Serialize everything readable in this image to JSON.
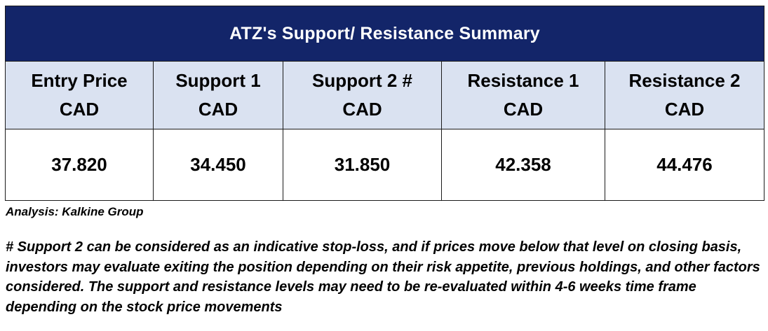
{
  "table": {
    "title": "ATZ's Support/  Resistance Summary",
    "headers": [
      {
        "line1": "Entry Price",
        "line2": "CAD"
      },
      {
        "line1": "Support 1",
        "line2": "CAD"
      },
      {
        "line1": "Support 2 #",
        "line2": "CAD"
      },
      {
        "line1": "Resistance 1",
        "line2": "CAD"
      },
      {
        "line1": "Resistance 2",
        "line2": "CAD"
      }
    ],
    "values": [
      "37.820",
      "34.450",
      "31.850",
      "42.358",
      "44.476"
    ]
  },
  "analysis_credit": "Analysis: Kalkine Group",
  "footnote": "# Support 2 can be considered as an indicative stop-loss, and if prices move below that level on closing basis, investors may evaluate exiting the position depending on their risk appetite, previous holdings, and other factors considered. The support and resistance levels may need to be re-evaluated within 4-6 weeks time frame depending on the stock price movements",
  "colors": {
    "title_background": "#132569",
    "header_background": "#dae2f1",
    "title_text": "#ffffff"
  }
}
